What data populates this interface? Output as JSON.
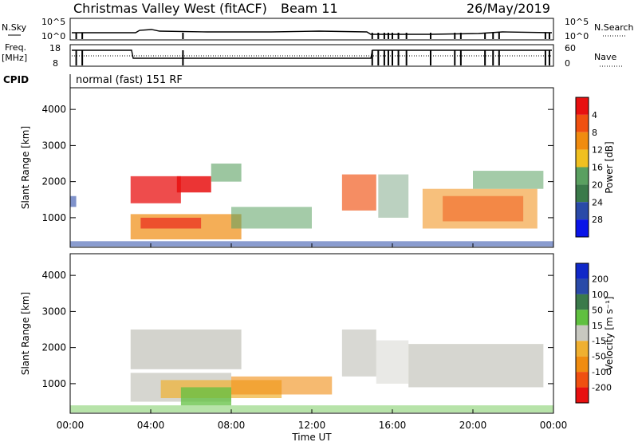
{
  "header": {
    "station": "Christmas Valley West (fitACF)",
    "beam": "Beam 11",
    "date": "26/May/2019"
  },
  "labels": {
    "nsky": "N.Sky",
    "nsearch": "N.Search",
    "freq_top": "Freq.",
    "freq_unit": "[MHz]",
    "nave": "Nave",
    "cpid": "CPID",
    "cpid_value": "normal (fast) 151 RF"
  },
  "noise_axis": {
    "left_ticks": [
      "10^5",
      "10^0"
    ],
    "right_ticks": [
      "10^5",
      "10^0"
    ]
  },
  "freq_axis": {
    "left_ticks": [
      "18",
      "8"
    ],
    "right_ticks": [
      "60",
      "0"
    ]
  },
  "colors": {
    "power_scale": [
      "#0a14e8",
      "#2a4aa8",
      "#3b7a4a",
      "#5aa060",
      "#f0c020",
      "#f08c10",
      "#f05010",
      "#e81010"
    ],
    "velocity_scale": [
      "#e81010",
      "#f05010",
      "#f08c10",
      "#f0b030",
      "#c8c8c0",
      "#60c040",
      "#3b7a4a",
      "#2a4aa8",
      "#1028c8"
    ]
  },
  "chart_data": [
    {
      "type": "heatmap",
      "name": "power",
      "ylabel": "Slant Range [km]",
      "xlabel": "Time UT",
      "x_ticks": [
        "00:00",
        "04:00",
        "08:00",
        "12:00",
        "16:00",
        "20:00",
        "00:00"
      ],
      "y_ticks": [
        "1000",
        "2000",
        "3000",
        "4000"
      ],
      "ylim": [
        180,
        4600
      ],
      "xlim_hours": [
        0,
        24
      ],
      "colorbar": {
        "label": "Power [dB]",
        "ticks": [
          "4",
          "8",
          "12",
          "16",
          "20",
          "24",
          "28"
        ]
      }
    },
    {
      "type": "heatmap",
      "name": "velocity",
      "ylabel": "Slant Range [km]",
      "xlabel": "Time UT",
      "x_ticks": [
        "00:00",
        "04:00",
        "08:00",
        "12:00",
        "16:00",
        "20:00",
        "00:00"
      ],
      "y_ticks": [
        "1000",
        "2000",
        "3000",
        "4000"
      ],
      "ylim": [
        180,
        4600
      ],
      "xlim_hours": [
        0,
        24
      ],
      "colorbar": {
        "label": "Velocity [m s⁻¹]",
        "ticks": [
          "200",
          "100",
          "50",
          "15",
          "-15",
          "-50",
          "-100",
          "-200"
        ]
      }
    }
  ],
  "footer": {
    "time_label": "Time UT"
  }
}
